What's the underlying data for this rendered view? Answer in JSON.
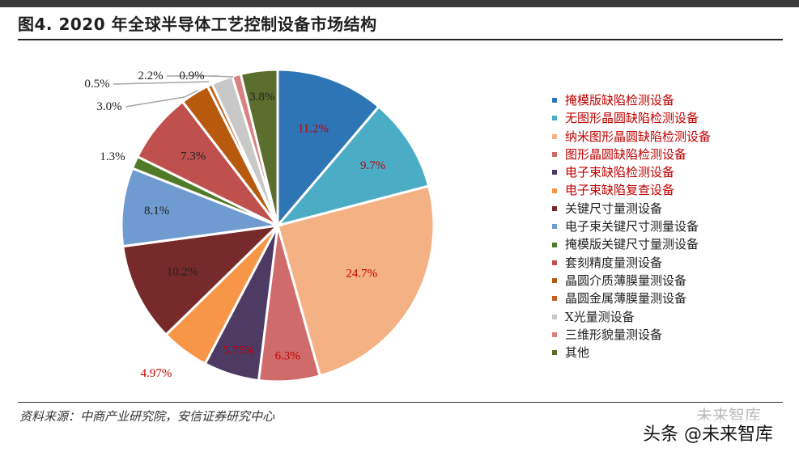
{
  "figure": {
    "title": "图4. 2020 年全球半导体工艺控制设备市场结构",
    "source": "资料来源：中商产业研究院，安信证券研究中心",
    "watermark": "头条 @未来智库",
    "watermark_ghost": "未来智库"
  },
  "chart_data": {
    "type": "pie",
    "title": "",
    "unit": "%",
    "slices": [
      {
        "label": "掩模版缺陷检测设备",
        "value": 11.2,
        "display": "11.2%",
        "color": "#2e75b6",
        "label_color": "#c00000"
      },
      {
        "label": "无图形晶圆缺陷检测设备",
        "value": 9.7,
        "display": "9.7%",
        "color": "#4bacc6",
        "label_color": "#c00000"
      },
      {
        "label": "纳米图形晶圆缺陷检测设备",
        "value": 24.7,
        "display": "24.7%",
        "color": "#f4b183",
        "label_color": "#c00000"
      },
      {
        "label": "图形晶圆缺陷检测设备",
        "value": 6.3,
        "display": "6.3%",
        "color": "#d06b6b",
        "label_color": "#c00000"
      },
      {
        "label": "电子束缺陷检测设备",
        "value": 5.75,
        "display": "5.75%",
        "color": "#4e3b63",
        "label_color": "#c00000"
      },
      {
        "label": "电子束缺陷复查设备",
        "value": 4.97,
        "display": "4.97%",
        "color": "#f79646",
        "label_color": "#c00000"
      },
      {
        "label": "关键尺寸量测设备",
        "value": 10.2,
        "display": "10.2%",
        "color": "#772a2a",
        "label_color": "#222222"
      },
      {
        "label": "电子束关键尺寸测量设备",
        "value": 8.1,
        "display": "8.1%",
        "color": "#6f9bd1",
        "label_color": "#222222"
      },
      {
        "label": "掩模版关键尺寸量测设备",
        "value": 1.3,
        "display": "1.3%",
        "color": "#4f7a28",
        "label_color": "#222222"
      },
      {
        "label": "套刻精度量测设备",
        "value": 7.3,
        "display": "7.3%",
        "color": "#c0504d",
        "label_color": "#222222"
      },
      {
        "label": "晶圆介质薄膜量测设备",
        "value": 3.0,
        "display": "3.0%",
        "color": "#b85a0e",
        "label_color": "#222222"
      },
      {
        "label": "晶圆金属薄膜量测设备",
        "value": 0.5,
        "display": "0.5%",
        "color": "#c5611a",
        "label_color": "#222222"
      },
      {
        "label": "X光量测设备",
        "value": 2.2,
        "display": "2.2%",
        "color": "#c8c8c8",
        "label_color": "#222222"
      },
      {
        "label": "三维形貌量测设备",
        "value": 0.9,
        "display": "0.9%",
        "color": "#d98080",
        "label_color": "#222222"
      },
      {
        "label": "其他",
        "value": 3.8,
        "display": "3.8%",
        "color": "#5b6e2d",
        "label_color": "#222222"
      }
    ],
    "legend_text_colors": [
      "#c00000",
      "#c00000",
      "#c00000",
      "#c00000",
      "#c00000",
      "#c00000",
      "#222222",
      "#222222",
      "#222222",
      "#222222",
      "#222222",
      "#222222",
      "#222222",
      "#222222",
      "#222222"
    ],
    "legend_position": "right",
    "start_angle_deg": 0,
    "direction": "clockwise"
  }
}
